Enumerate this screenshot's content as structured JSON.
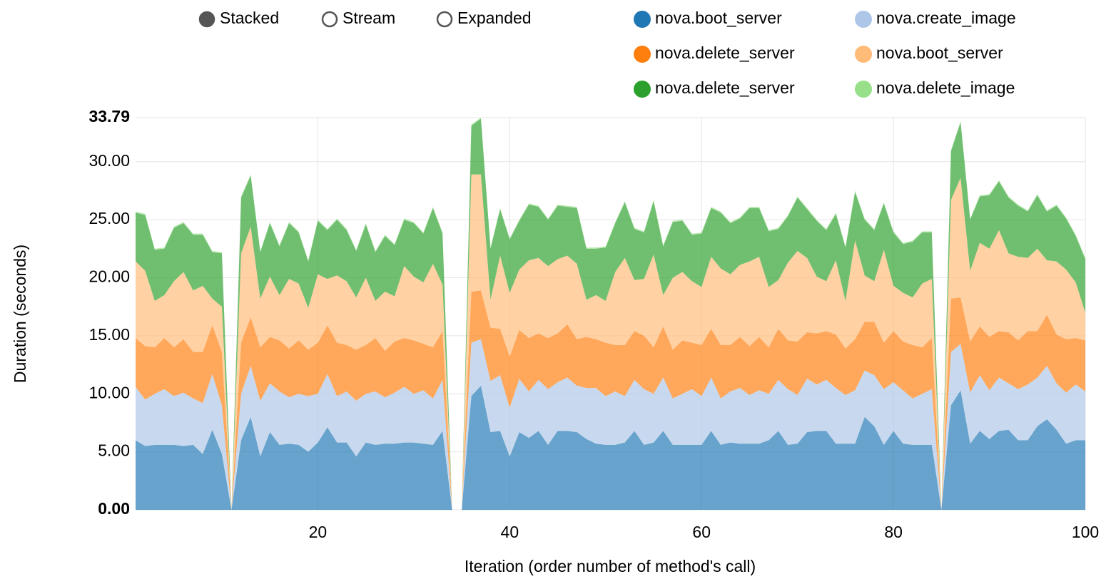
{
  "chart_data": {
    "type": "stacked_area",
    "controls": [
      "Stacked",
      "Stream",
      "Expanded"
    ],
    "active_control": "Stacked",
    "x_label": "Iteration (order number of method's call)",
    "y_label": "Duration (seconds)",
    "x": [
      1,
      2,
      3,
      4,
      5,
      6,
      7,
      8,
      9,
      10,
      11,
      12,
      13,
      14,
      15,
      16,
      17,
      18,
      19,
      20,
      21,
      22,
      23,
      24,
      25,
      26,
      27,
      28,
      29,
      30,
      31,
      32,
      33,
      34,
      35,
      36,
      37,
      38,
      39,
      40,
      41,
      42,
      43,
      44,
      45,
      46,
      47,
      48,
      49,
      50,
      51,
      52,
      53,
      54,
      55,
      56,
      57,
      58,
      59,
      60,
      61,
      62,
      63,
      64,
      65,
      66,
      67,
      68,
      69,
      70,
      71,
      72,
      73,
      74,
      75,
      76,
      77,
      78,
      79,
      80,
      81,
      82,
      83,
      84,
      85,
      86,
      87,
      88,
      89,
      90,
      91,
      92,
      93,
      94,
      95,
      96,
      97,
      98,
      99,
      100
    ],
    "xlim": [
      1,
      100
    ],
    "xticks": [
      20,
      40,
      60,
      80,
      100
    ],
    "ylim": [
      0,
      33.79
    ],
    "yticks": [
      {
        "value": 0,
        "label": "0.00"
      },
      {
        "value": 5,
        "label": "5.00"
      },
      {
        "value": 10,
        "label": "10.00"
      },
      {
        "value": 15,
        "label": "15.00"
      },
      {
        "value": 20,
        "label": "20.00"
      },
      {
        "value": 25,
        "label": "25.00"
      },
      {
        "value": 30,
        "label": "30.00"
      },
      {
        "value": 33.79,
        "label": "33.79"
      }
    ],
    "grid": true,
    "legend": "top-right",
    "series": [
      {
        "name": "nova.boot_server",
        "color": "#1f77b4",
        "values": [
          6.0,
          5.5,
          5.6,
          5.6,
          5.6,
          5.5,
          5.6,
          4.8,
          6.9,
          4.8,
          0,
          6.0,
          8.0,
          4.6,
          6.7,
          5.6,
          5.7,
          5.6,
          5.0,
          5.8,
          7.1,
          5.8,
          5.8,
          4.6,
          5.8,
          5.6,
          5.7,
          5.7,
          5.8,
          5.8,
          5.7,
          5.6,
          6.8,
          0,
          0,
          9.8,
          10.7,
          6.7,
          6.8,
          4.6,
          6.7,
          6.2,
          6.8,
          5.6,
          6.8,
          6.8,
          6.7,
          6.1,
          5.7,
          5.6,
          5.6,
          5.8,
          6.8,
          5.6,
          5.8,
          6.8,
          5.6,
          5.6,
          5.6,
          5.6,
          6.8,
          5.6,
          5.8,
          5.7,
          5.7,
          5.7,
          6.0,
          6.8,
          5.6,
          5.7,
          6.7,
          6.8,
          6.8,
          5.7,
          5.7,
          5.7,
          8.0,
          7.2,
          5.6,
          6.8,
          5.7,
          5.6,
          5.6,
          5.6,
          0,
          9.0,
          10.3,
          5.7,
          6.8,
          6.1,
          6.8,
          6.9,
          6.0,
          6.0,
          7.2,
          7.8,
          6.9,
          5.7,
          6.0,
          6.0
        ]
      },
      {
        "name": "nova.create_image",
        "color": "#aec7e8",
        "values": [
          4.6,
          4.0,
          4.4,
          4.8,
          4.2,
          4.6,
          4.0,
          4.4,
          4.8,
          4.2,
          0,
          4.0,
          4.4,
          4.8,
          4.2,
          4.6,
          4.0,
          4.4,
          4.8,
          4.2,
          4.6,
          4.0,
          4.4,
          4.8,
          4.2,
          4.6,
          4.0,
          4.4,
          4.8,
          4.2,
          4.6,
          4.0,
          4.4,
          0,
          0,
          4.6,
          4.0,
          4.4,
          4.8,
          4.2,
          4.6,
          4.0,
          4.4,
          4.8,
          4.2,
          4.6,
          4.0,
          4.4,
          4.8,
          4.2,
          4.6,
          4.0,
          4.4,
          4.8,
          4.2,
          4.6,
          4.0,
          4.4,
          4.8,
          4.2,
          4.6,
          4.0,
          4.4,
          4.8,
          4.2,
          4.6,
          4.0,
          4.4,
          4.8,
          4.2,
          4.6,
          4.0,
          4.4,
          4.8,
          4.2,
          4.6,
          4.0,
          4.4,
          4.8,
          4.2,
          4.6,
          4.0,
          4.4,
          4.8,
          0,
          4.6,
          4.0,
          4.4,
          4.8,
          4.2,
          4.6,
          4.0,
          4.4,
          4.8,
          4.2,
          4.6,
          4.0,
          4.4,
          4.8,
          4.2
        ]
      },
      {
        "name": "nova.delete_server",
        "color": "#ff7f0e",
        "values": [
          4.2,
          4.6,
          4.0,
          4.4,
          4.2,
          4.6,
          4.0,
          4.4,
          4.2,
          4.6,
          0,
          4.4,
          4.2,
          4.6,
          4.0,
          4.4,
          4.2,
          4.6,
          4.0,
          4.4,
          4.2,
          4.6,
          4.0,
          4.4,
          4.2,
          4.6,
          4.0,
          4.4,
          4.2,
          4.6,
          4.0,
          4.4,
          4.2,
          0,
          0,
          4.4,
          4.2,
          4.6,
          4.0,
          4.4,
          4.2,
          4.6,
          4.0,
          4.4,
          4.2,
          4.6,
          4.0,
          4.4,
          4.2,
          4.6,
          4.0,
          4.4,
          4.2,
          4.6,
          4.0,
          4.4,
          4.2,
          4.6,
          4.0,
          4.4,
          4.2,
          4.6,
          4.0,
          4.4,
          4.2,
          4.6,
          4.0,
          4.4,
          4.2,
          4.6,
          4.0,
          4.4,
          4.2,
          4.6,
          4.0,
          4.4,
          4.2,
          4.6,
          4.0,
          4.4,
          4.2,
          4.6,
          4.0,
          4.4,
          0,
          4.6,
          4.0,
          4.4,
          4.2,
          4.6,
          4.0,
          4.4,
          4.2,
          4.6,
          4.0,
          4.4,
          4.2,
          4.6,
          4.0,
          4.4
        ]
      },
      {
        "name": "nova.boot_server",
        "color": "#ffbb78",
        "values": [
          6.6,
          6.5,
          4.0,
          3.7,
          5.7,
          5.8,
          5.3,
          5.7,
          2.3,
          3.9,
          0,
          7.7,
          7.8,
          4.2,
          5.2,
          3.9,
          6.0,
          4.9,
          3.6,
          5.9,
          4.0,
          5.8,
          5.5,
          4.5,
          5.8,
          3.2,
          5.1,
          3.9,
          6.2,
          5.5,
          5.3,
          7.2,
          4.0,
          0,
          0,
          10.1,
          10.0,
          2.4,
          6.3,
          5.5,
          5.2,
          6.7,
          6.5,
          6.2,
          6.4,
          5.9,
          6.5,
          3.2,
          3.8,
          3.6,
          6.3,
          7.5,
          4.4,
          4.9,
          8.0,
          2.7,
          6.2,
          5.9,
          5.3,
          5.0,
          6.2,
          6.6,
          6.1,
          6.2,
          7.3,
          6.9,
          5.2,
          4.2,
          6.7,
          7.8,
          6.4,
          4.9,
          4.3,
          6.4,
          4.1,
          8.5,
          4.0,
          3.5,
          8.0,
          3.9,
          4.2,
          4.1,
          5.5,
          5.1,
          0,
          8.5,
          10.3,
          6.1,
          7.2,
          7.6,
          8.7,
          6.8,
          7.2,
          6.3,
          7.1,
          4.7,
          6.3,
          6.0,
          4.8,
          2.4
        ]
      },
      {
        "name": "nova.delete_server",
        "color": "#2ca02c",
        "values": [
          4.2,
          4.8,
          4.4,
          4.0,
          4.6,
          4.2,
          4.8,
          4.4,
          4.0,
          4.6,
          0,
          4.8,
          4.4,
          4.0,
          4.6,
          4.2,
          4.8,
          4.4,
          4.0,
          4.6,
          4.2,
          4.8,
          4.4,
          4.0,
          4.6,
          4.2,
          4.8,
          4.4,
          4.0,
          4.6,
          4.2,
          4.8,
          4.4,
          0,
          0,
          4.2,
          4.8,
          4.4,
          4.0,
          4.6,
          4.2,
          4.8,
          4.4,
          4.0,
          4.6,
          4.2,
          4.8,
          4.4,
          4.0,
          4.6,
          4.2,
          4.8,
          4.4,
          4.0,
          4.6,
          4.2,
          4.8,
          4.4,
          4.0,
          4.6,
          4.2,
          4.8,
          4.4,
          4.0,
          4.6,
          4.2,
          4.8,
          4.4,
          4.0,
          4.6,
          4.2,
          4.8,
          4.4,
          4.0,
          4.6,
          4.2,
          4.8,
          4.4,
          4.0,
          4.6,
          4.2,
          4.8,
          4.4,
          4.0,
          0,
          4.2,
          4.8,
          4.4,
          4.0,
          4.6,
          4.2,
          4.8,
          4.4,
          4.0,
          4.6,
          4.2,
          4.8,
          4.4,
          4.0,
          4.6
        ]
      },
      {
        "name": "nova.delete_image",
        "color": "#98df8a",
        "values": [
          0.1,
          0.1,
          0.1,
          0.1,
          0.1,
          0.1,
          0.1,
          0.1,
          0.1,
          0.1,
          0,
          0.1,
          0.1,
          0.1,
          0.1,
          0.1,
          0.1,
          0.1,
          0.1,
          0.1,
          0.1,
          0.1,
          0.1,
          0.1,
          0.1,
          0.1,
          0.1,
          0.1,
          0.1,
          0.1,
          0.1,
          0.1,
          0.1,
          0,
          0,
          0.1,
          0.1,
          0.1,
          0.1,
          0.1,
          0.1,
          0.1,
          0.1,
          0.1,
          0.1,
          0.1,
          0.1,
          0.1,
          0.1,
          0.1,
          0.1,
          0.1,
          0.1,
          0.1,
          0.1,
          0.1,
          0.1,
          0.1,
          0.1,
          0.1,
          0.1,
          0.1,
          0.1,
          0.1,
          0.1,
          0.1,
          0.1,
          0.1,
          0.1,
          0.1,
          0.1,
          0.1,
          0.1,
          0.1,
          0.1,
          0.1,
          0.1,
          0.1,
          0.1,
          0.1,
          0.1,
          0.1,
          0.1,
          0.1,
          0,
          0.1,
          0.1,
          0.1,
          0.1,
          0.1,
          0.1,
          0.1,
          0.1,
          0.1,
          0.1,
          0.1,
          0.1,
          0.1,
          0.1,
          0.1
        ]
      }
    ]
  }
}
